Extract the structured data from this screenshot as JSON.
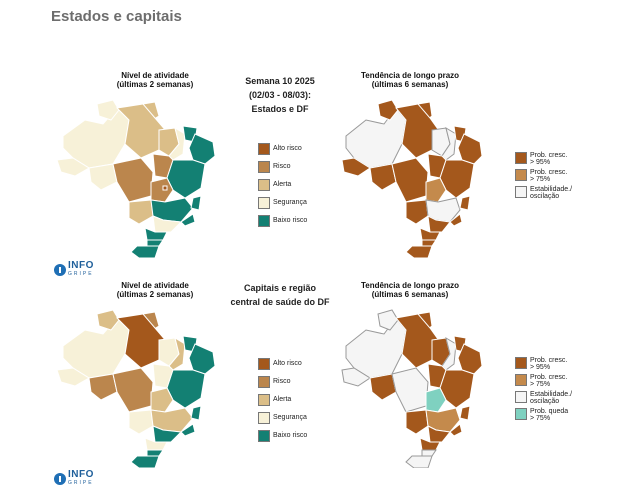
{
  "page": {
    "title": "Estados e capitais"
  },
  "colors": {
    "alto_risco": "#a4581c",
    "risco": "#bb864d",
    "alerta": "#dbbe88",
    "seguranca": "#f7f1d8",
    "baixo_risco": "#138073",
    "prob_cresc_95": "#a4581c",
    "prob_cresc_75": "#c48a4c",
    "estabilidade": "#f5f5f5",
    "prob_queda_75": "#7fd1c0"
  },
  "panels": [
    {
      "activity_title": [
        "Nível de atividade",
        "(últimas 2 semanas)"
      ],
      "center_title": [
        "Semana 10 2025",
        "(02/03 - 08/03):",
        "Estados e DF"
      ],
      "trend_title": [
        "Tendência de longo prazo",
        "(últimas 6 semanas)"
      ],
      "levels_legend": [
        "Alto risco",
        "Risco",
        "Alerta",
        "Segurança",
        "Baixo risco"
      ],
      "trend_legend": [
        [
          "Prob. cresc.",
          "> 95%"
        ],
        [
          "Prob. cresc.",
          "> 75%"
        ],
        [
          "Estabilidade./",
          "oscilação"
        ]
      ],
      "logo": {
        "name": "INFO",
        "sub": "GRIPE"
      }
    },
    {
      "activity_title": [
        "Nível de atividade",
        "(últimas 2 semanas)"
      ],
      "center_title": [
        "Capitais e região",
        "central de saúde do DF"
      ],
      "trend_title": [
        "Tendência de longo prazo",
        "(últimas 6 semanas)"
      ],
      "levels_legend": [
        "Alto risco",
        "Risco",
        "Alerta",
        "Segurança",
        "Baixo risco"
      ],
      "trend_legend": [
        [
          "Prob. cresc.",
          "> 95%"
        ],
        [
          "Prob. cresc.",
          "> 75%"
        ],
        [
          "Estabilidade./",
          "oscilação"
        ],
        [
          "Prob. queda",
          "> 75%"
        ]
      ],
      "logo": {
        "name": "INFO",
        "sub": "GRIPE"
      }
    }
  ]
}
